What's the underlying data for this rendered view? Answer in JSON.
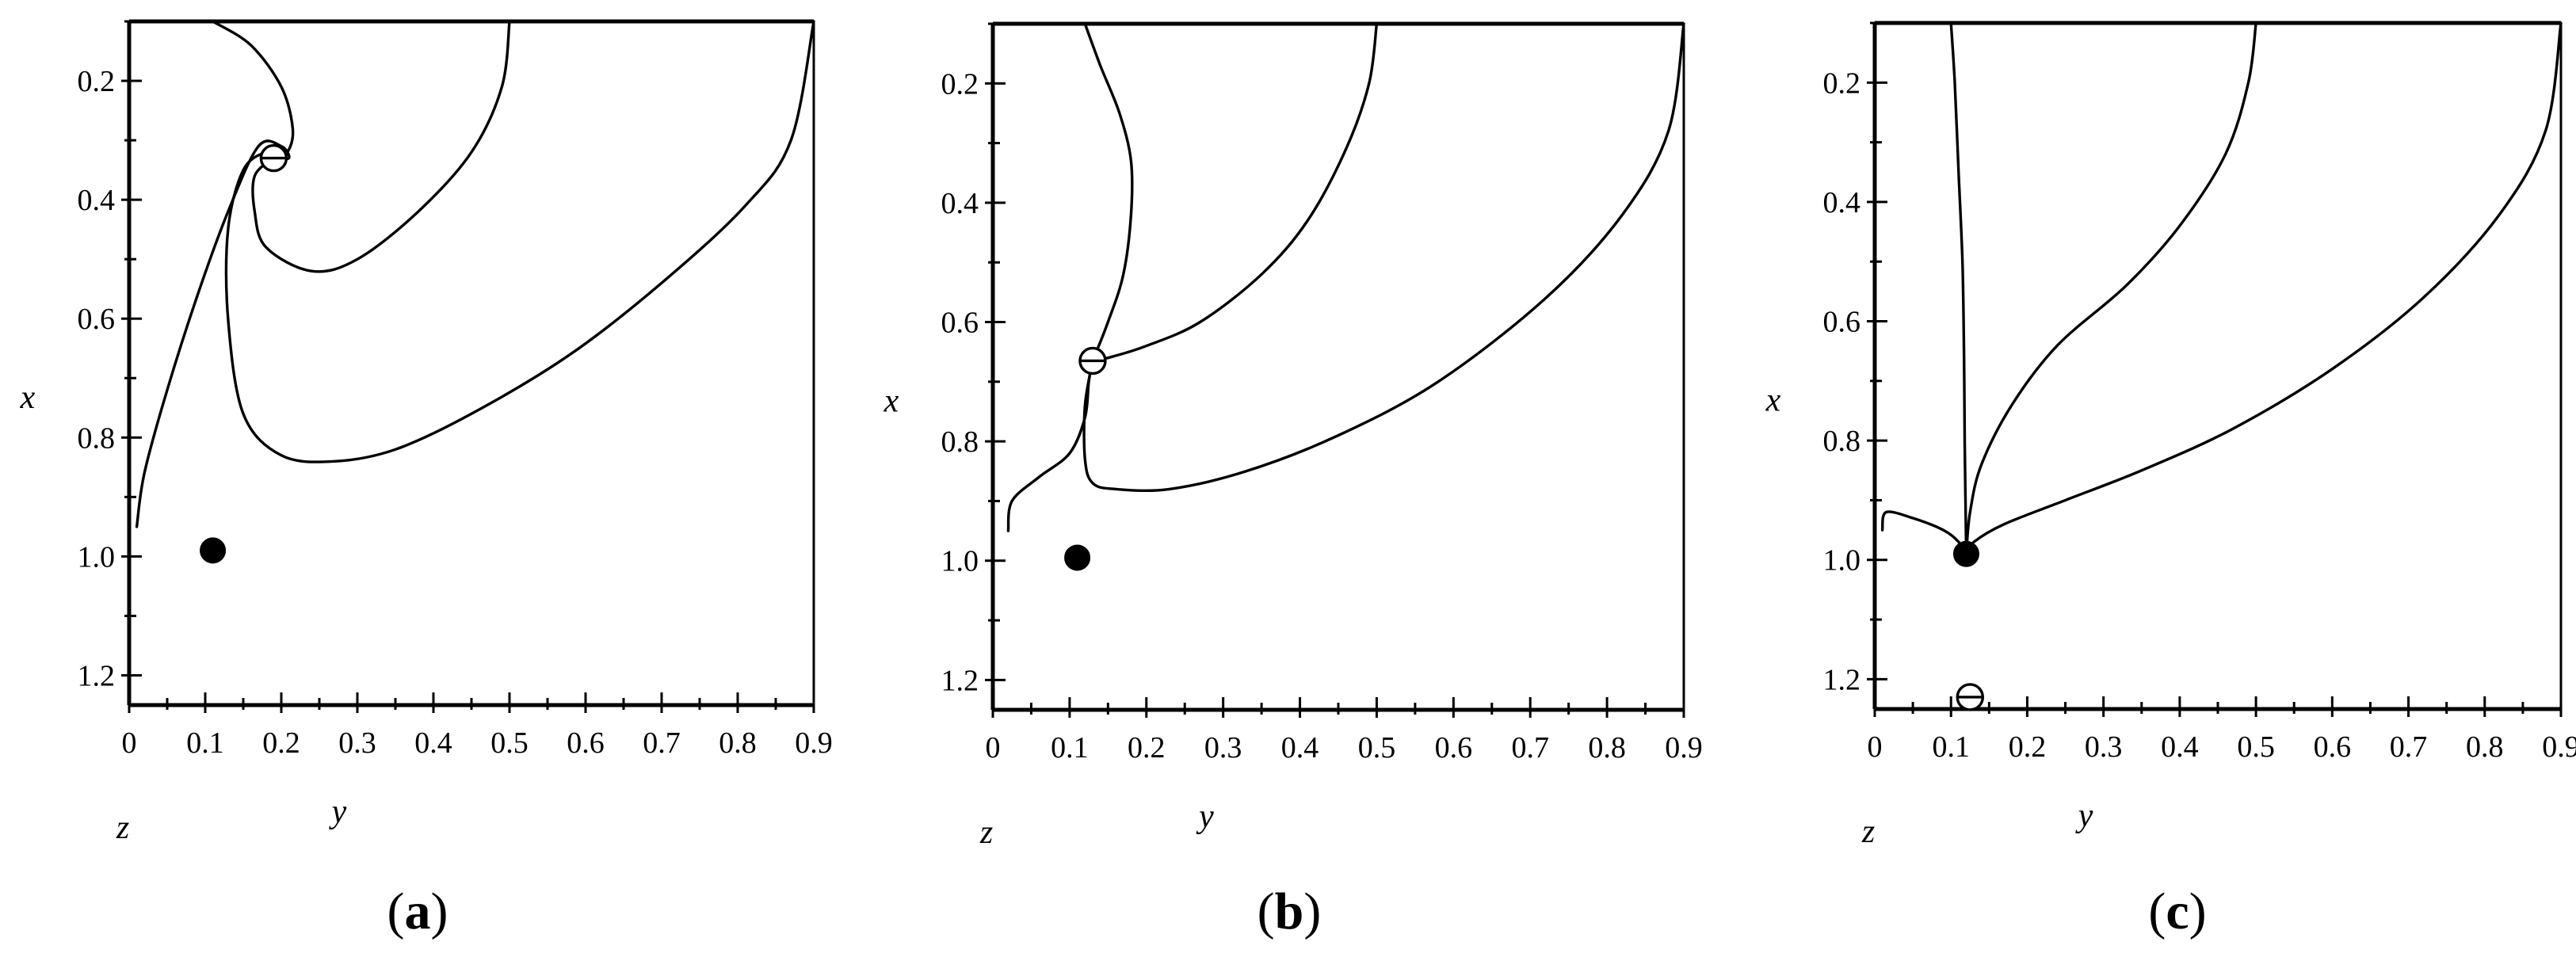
{
  "chart_data": [
    {
      "type": "line",
      "panel_label": "a",
      "xlabel": "y",
      "ylabel": "x",
      "corner_label": "z",
      "xlim": [
        0,
        0.9
      ],
      "ylim_inverted": [
        0.1,
        1.25
      ],
      "x_ticks": [
        "0",
        "0.1",
        "0.2",
        "0.3",
        "0.4",
        "0.5",
        "0.6",
        "0.7",
        "0.8",
        "0.9"
      ],
      "y_ticks": [
        "0.2",
        "0.4",
        "0.6",
        "0.8",
        "1.0",
        "1.2"
      ],
      "x_tick_values": [
        0,
        0.1,
        0.2,
        0.3,
        0.4,
        0.5,
        0.6,
        0.7,
        0.8,
        0.9
      ],
      "y_tick_values": [
        0.2,
        0.4,
        0.6,
        0.8,
        1.0,
        1.2
      ],
      "equilibria": [
        {
          "kind": "unstable",
          "y": 0.19,
          "x": 0.33
        },
        {
          "kind": "stable",
          "y": 0.11,
          "x": 0.99
        }
      ],
      "series": [
        {
          "points": [
            [
              0.11,
              0.1
            ],
            [
              0.16,
              0.14
            ],
            [
              0.2,
              0.21
            ],
            [
              0.215,
              0.28
            ],
            [
              0.208,
              0.32
            ],
            [
              0.19,
              0.33
            ]
          ]
        },
        {
          "points": [
            [
              0.01,
              0.95
            ],
            [
              0.02,
              0.86
            ],
            [
              0.05,
              0.72
            ],
            [
              0.09,
              0.56
            ],
            [
              0.13,
              0.42
            ],
            [
              0.17,
              0.31
            ],
            [
              0.2,
              0.31
            ],
            [
              0.21,
              0.33
            ],
            [
              0.19,
              0.33
            ]
          ]
        },
        {
          "points": [
            [
              0.5,
              0.1
            ],
            [
              0.49,
              0.21
            ],
            [
              0.45,
              0.32
            ],
            [
              0.38,
              0.42
            ],
            [
              0.3,
              0.5
            ],
            [
              0.24,
              0.52
            ],
            [
              0.18,
              0.48
            ],
            [
              0.165,
              0.42
            ],
            [
              0.165,
              0.36
            ],
            [
              0.19,
              0.33
            ]
          ]
        },
        {
          "points": [
            [
              0.9,
              0.1
            ],
            [
              0.87,
              0.3
            ],
            [
              0.81,
              0.41
            ],
            [
              0.7,
              0.54
            ],
            [
              0.58,
              0.66
            ],
            [
              0.45,
              0.76
            ],
            [
              0.35,
              0.82
            ],
            [
              0.27,
              0.84
            ],
            [
              0.2,
              0.83
            ],
            [
              0.15,
              0.76
            ],
            [
              0.13,
              0.6
            ],
            [
              0.13,
              0.45
            ],
            [
              0.15,
              0.35
            ],
            [
              0.18,
              0.32
            ],
            [
              0.19,
              0.33
            ]
          ]
        }
      ]
    },
    {
      "type": "line",
      "panel_label": "b",
      "xlabel": "y",
      "ylabel": "x",
      "corner_label": "z",
      "xlim": [
        0,
        0.9
      ],
      "ylim_inverted": [
        0.1,
        1.25
      ],
      "x_ticks": [
        "0",
        "0.1",
        "0.2",
        "0.3",
        "0.4",
        "0.5",
        "0.6",
        "0.7",
        "0.8",
        "0.9"
      ],
      "y_ticks": [
        "0.2",
        "0.4",
        "0.6",
        "0.8",
        "1.0",
        "1.2"
      ],
      "x_tick_values": [
        0,
        0.1,
        0.2,
        0.3,
        0.4,
        0.5,
        0.6,
        0.7,
        0.8,
        0.9
      ],
      "y_tick_values": [
        0.2,
        0.4,
        0.6,
        0.8,
        1.0,
        1.2
      ],
      "equilibria": [
        {
          "kind": "unstable",
          "y": 0.13,
          "x": 0.665
        },
        {
          "kind": "stable",
          "y": 0.11,
          "x": 0.995
        }
      ],
      "series": [
        {
          "points": [
            [
              0.12,
              0.1
            ],
            [
              0.14,
              0.17
            ],
            [
              0.165,
              0.25
            ],
            [
              0.18,
              0.33
            ],
            [
              0.18,
              0.42
            ],
            [
              0.17,
              0.52
            ],
            [
              0.15,
              0.6
            ],
            [
              0.13,
              0.665
            ]
          ]
        },
        {
          "points": [
            [
              0.02,
              0.95
            ],
            [
              0.025,
              0.9
            ],
            [
              0.06,
              0.86
            ],
            [
              0.1,
              0.82
            ],
            [
              0.12,
              0.76
            ],
            [
              0.125,
              0.7
            ],
            [
              0.13,
              0.665
            ]
          ]
        },
        {
          "points": [
            [
              0.5,
              0.1
            ],
            [
              0.49,
              0.2
            ],
            [
              0.46,
              0.31
            ],
            [
              0.41,
              0.43
            ],
            [
              0.35,
              0.52
            ],
            [
              0.27,
              0.6
            ],
            [
              0.2,
              0.64
            ],
            [
              0.15,
              0.66
            ],
            [
              0.13,
              0.665
            ]
          ]
        },
        {
          "points": [
            [
              0.9,
              0.1
            ],
            [
              0.88,
              0.28
            ],
            [
              0.82,
              0.42
            ],
            [
              0.72,
              0.56
            ],
            [
              0.58,
              0.7
            ],
            [
              0.45,
              0.79
            ],
            [
              0.33,
              0.85
            ],
            [
              0.23,
              0.88
            ],
            [
              0.16,
              0.88
            ],
            [
              0.13,
              0.87
            ],
            [
              0.12,
              0.83
            ],
            [
              0.12,
              0.74
            ],
            [
              0.13,
              0.665
            ]
          ]
        }
      ]
    },
    {
      "type": "line",
      "panel_label": "c",
      "xlabel": "y",
      "ylabel": "x",
      "corner_label": "z",
      "xlim": [
        0,
        0.9
      ],
      "ylim_inverted": [
        0.1,
        1.25
      ],
      "x_ticks": [
        "0",
        "0.1",
        "0.2",
        "0.3",
        "0.4",
        "0.5",
        "0.6",
        "0.7",
        "0.8",
        "0.9"
      ],
      "y_ticks": [
        "0.2",
        "0.4",
        "0.6",
        "0.8",
        "1.0",
        "1.2"
      ],
      "x_tick_values": [
        0,
        0.1,
        0.2,
        0.3,
        0.4,
        0.5,
        0.6,
        0.7,
        0.8,
        0.9
      ],
      "y_tick_values": [
        0.2,
        0.4,
        0.6,
        0.8,
        1.0,
        1.2
      ],
      "equilibria": [
        {
          "kind": "stable",
          "y": 0.12,
          "x": 0.99
        },
        {
          "kind": "unstable",
          "y": 0.125,
          "x": 1.23
        }
      ],
      "series": [
        {
          "points": [
            [
              0.1,
              0.1
            ],
            [
              0.105,
              0.2
            ],
            [
              0.11,
              0.35
            ],
            [
              0.115,
              0.5
            ],
            [
              0.117,
              0.65
            ],
            [
              0.118,
              0.8
            ],
            [
              0.12,
              0.99
            ]
          ]
        },
        {
          "points": [
            [
              0.01,
              0.95
            ],
            [
              0.015,
              0.92
            ],
            [
              0.05,
              0.93
            ],
            [
              0.09,
              0.95
            ],
            [
              0.11,
              0.97
            ],
            [
              0.12,
              0.99
            ]
          ]
        },
        {
          "points": [
            [
              0.5,
              0.1
            ],
            [
              0.49,
              0.2
            ],
            [
              0.46,
              0.32
            ],
            [
              0.4,
              0.44
            ],
            [
              0.33,
              0.54
            ],
            [
              0.24,
              0.64
            ],
            [
              0.18,
              0.74
            ],
            [
              0.14,
              0.84
            ],
            [
              0.125,
              0.92
            ],
            [
              0.12,
              0.99
            ]
          ]
        },
        {
          "points": [
            [
              0.9,
              0.1
            ],
            [
              0.88,
              0.28
            ],
            [
              0.82,
              0.42
            ],
            [
              0.72,
              0.56
            ],
            [
              0.6,
              0.68
            ],
            [
              0.47,
              0.78
            ],
            [
              0.35,
              0.85
            ],
            [
              0.25,
              0.9
            ],
            [
              0.17,
              0.94
            ],
            [
              0.13,
              0.97
            ],
            [
              0.12,
              0.99
            ]
          ]
        }
      ]
    }
  ]
}
